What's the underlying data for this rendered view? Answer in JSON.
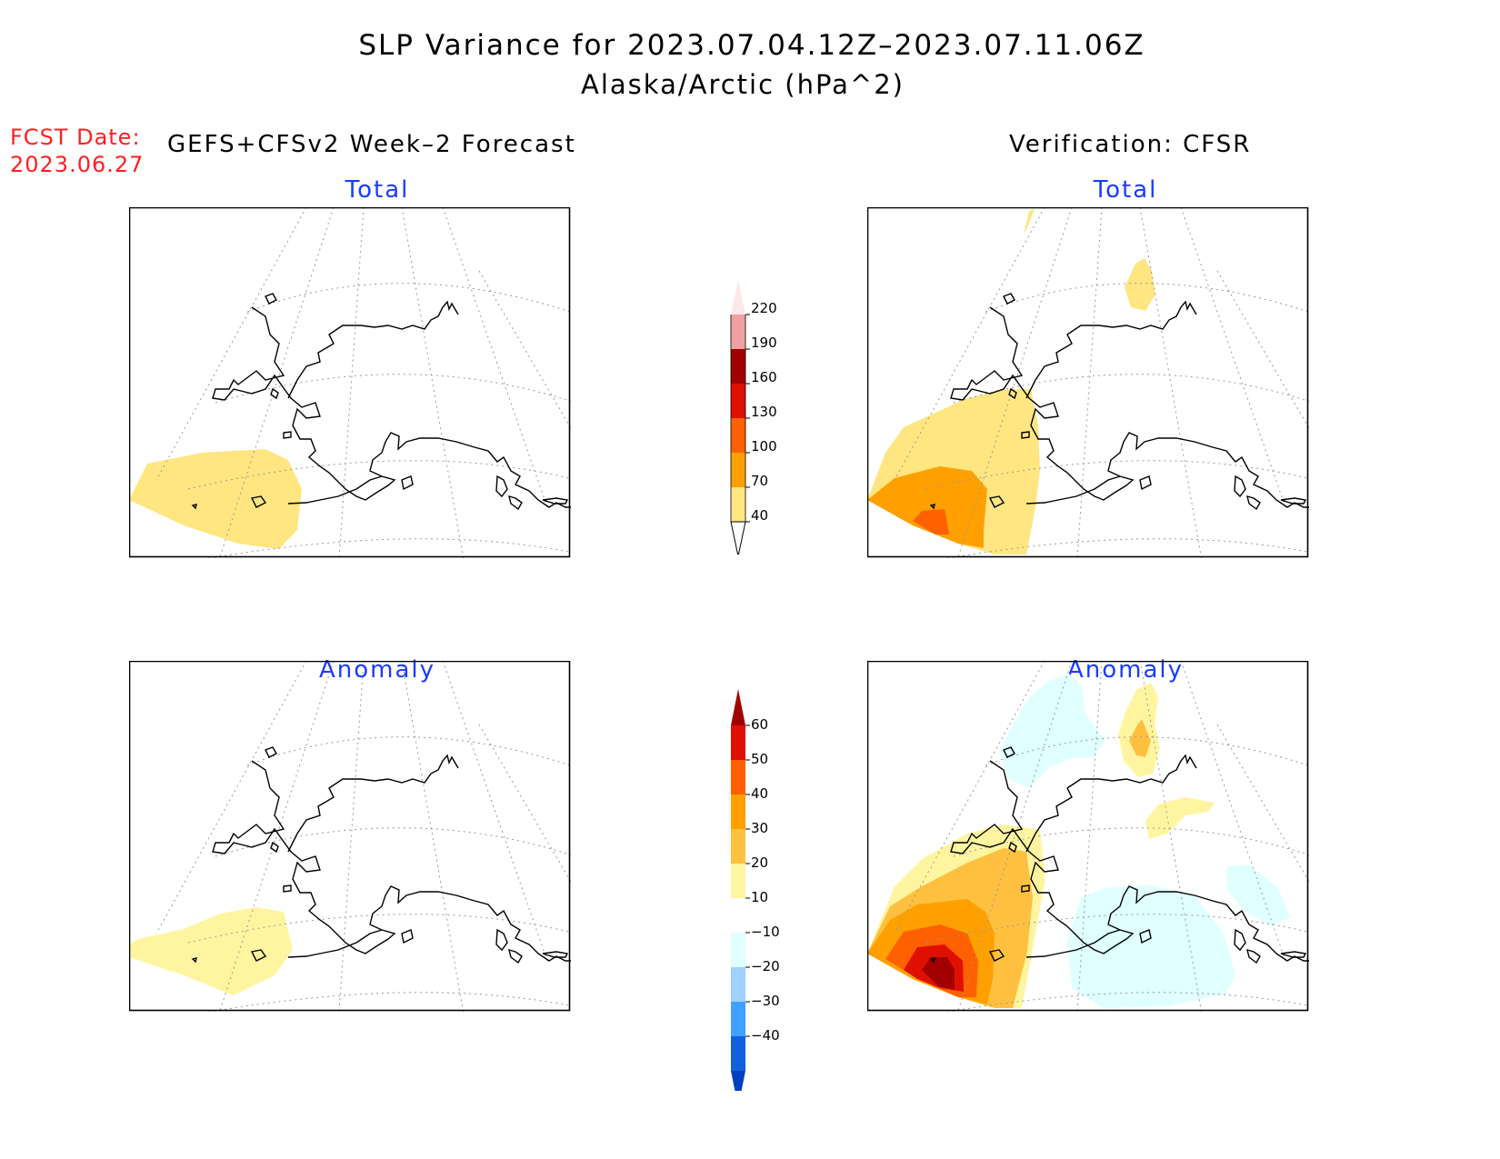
{
  "title": "SLP Variance for 2023.07.04.12Z–2023.07.11.06Z",
  "subtitle": "Alaska/Arctic (hPa^2)",
  "fcst_date_label": "FCST Date:",
  "fcst_date_value": "2023.06.27",
  "forecast_header": "GEFS+CFSv2 Week–2 Forecast",
  "verification_header": "Verification: CFSR",
  "panels": {
    "forecast_total": {
      "title": "Total"
    },
    "verification_total": {
      "title": "Total"
    },
    "forecast_anomaly": {
      "title": "Anomaly"
    },
    "verification_anomaly": {
      "title": "Anomaly"
    }
  },
  "colorbars": {
    "total": {
      "levels": [
        "40",
        "70",
        "100",
        "130",
        "160",
        "190",
        "220"
      ],
      "colors": [
        "#ffe680",
        "#ffa000",
        "#ff6000",
        "#e01000",
        "#a00000",
        "#f0a0a0",
        "#fce8e8"
      ]
    },
    "anomaly": {
      "levels": [
        "60",
        "50",
        "40",
        "30",
        "20",
        "10",
        "−10",
        "−20",
        "−30",
        "−40"
      ],
      "colors": [
        "#a00000",
        "#e01000",
        "#ff6000",
        "#ffa000",
        "#ffc040",
        "#fff5a0",
        "#ffffff",
        "#e0ffff",
        "#a0d0ff",
        "#40a0ff",
        "#1060e0",
        "#0040c0"
      ]
    }
  },
  "colors": {
    "title_text": "#000000",
    "fcst_text": "#ff2020",
    "panel_title": "#1a3cff",
    "grid_line": "#999999"
  }
}
